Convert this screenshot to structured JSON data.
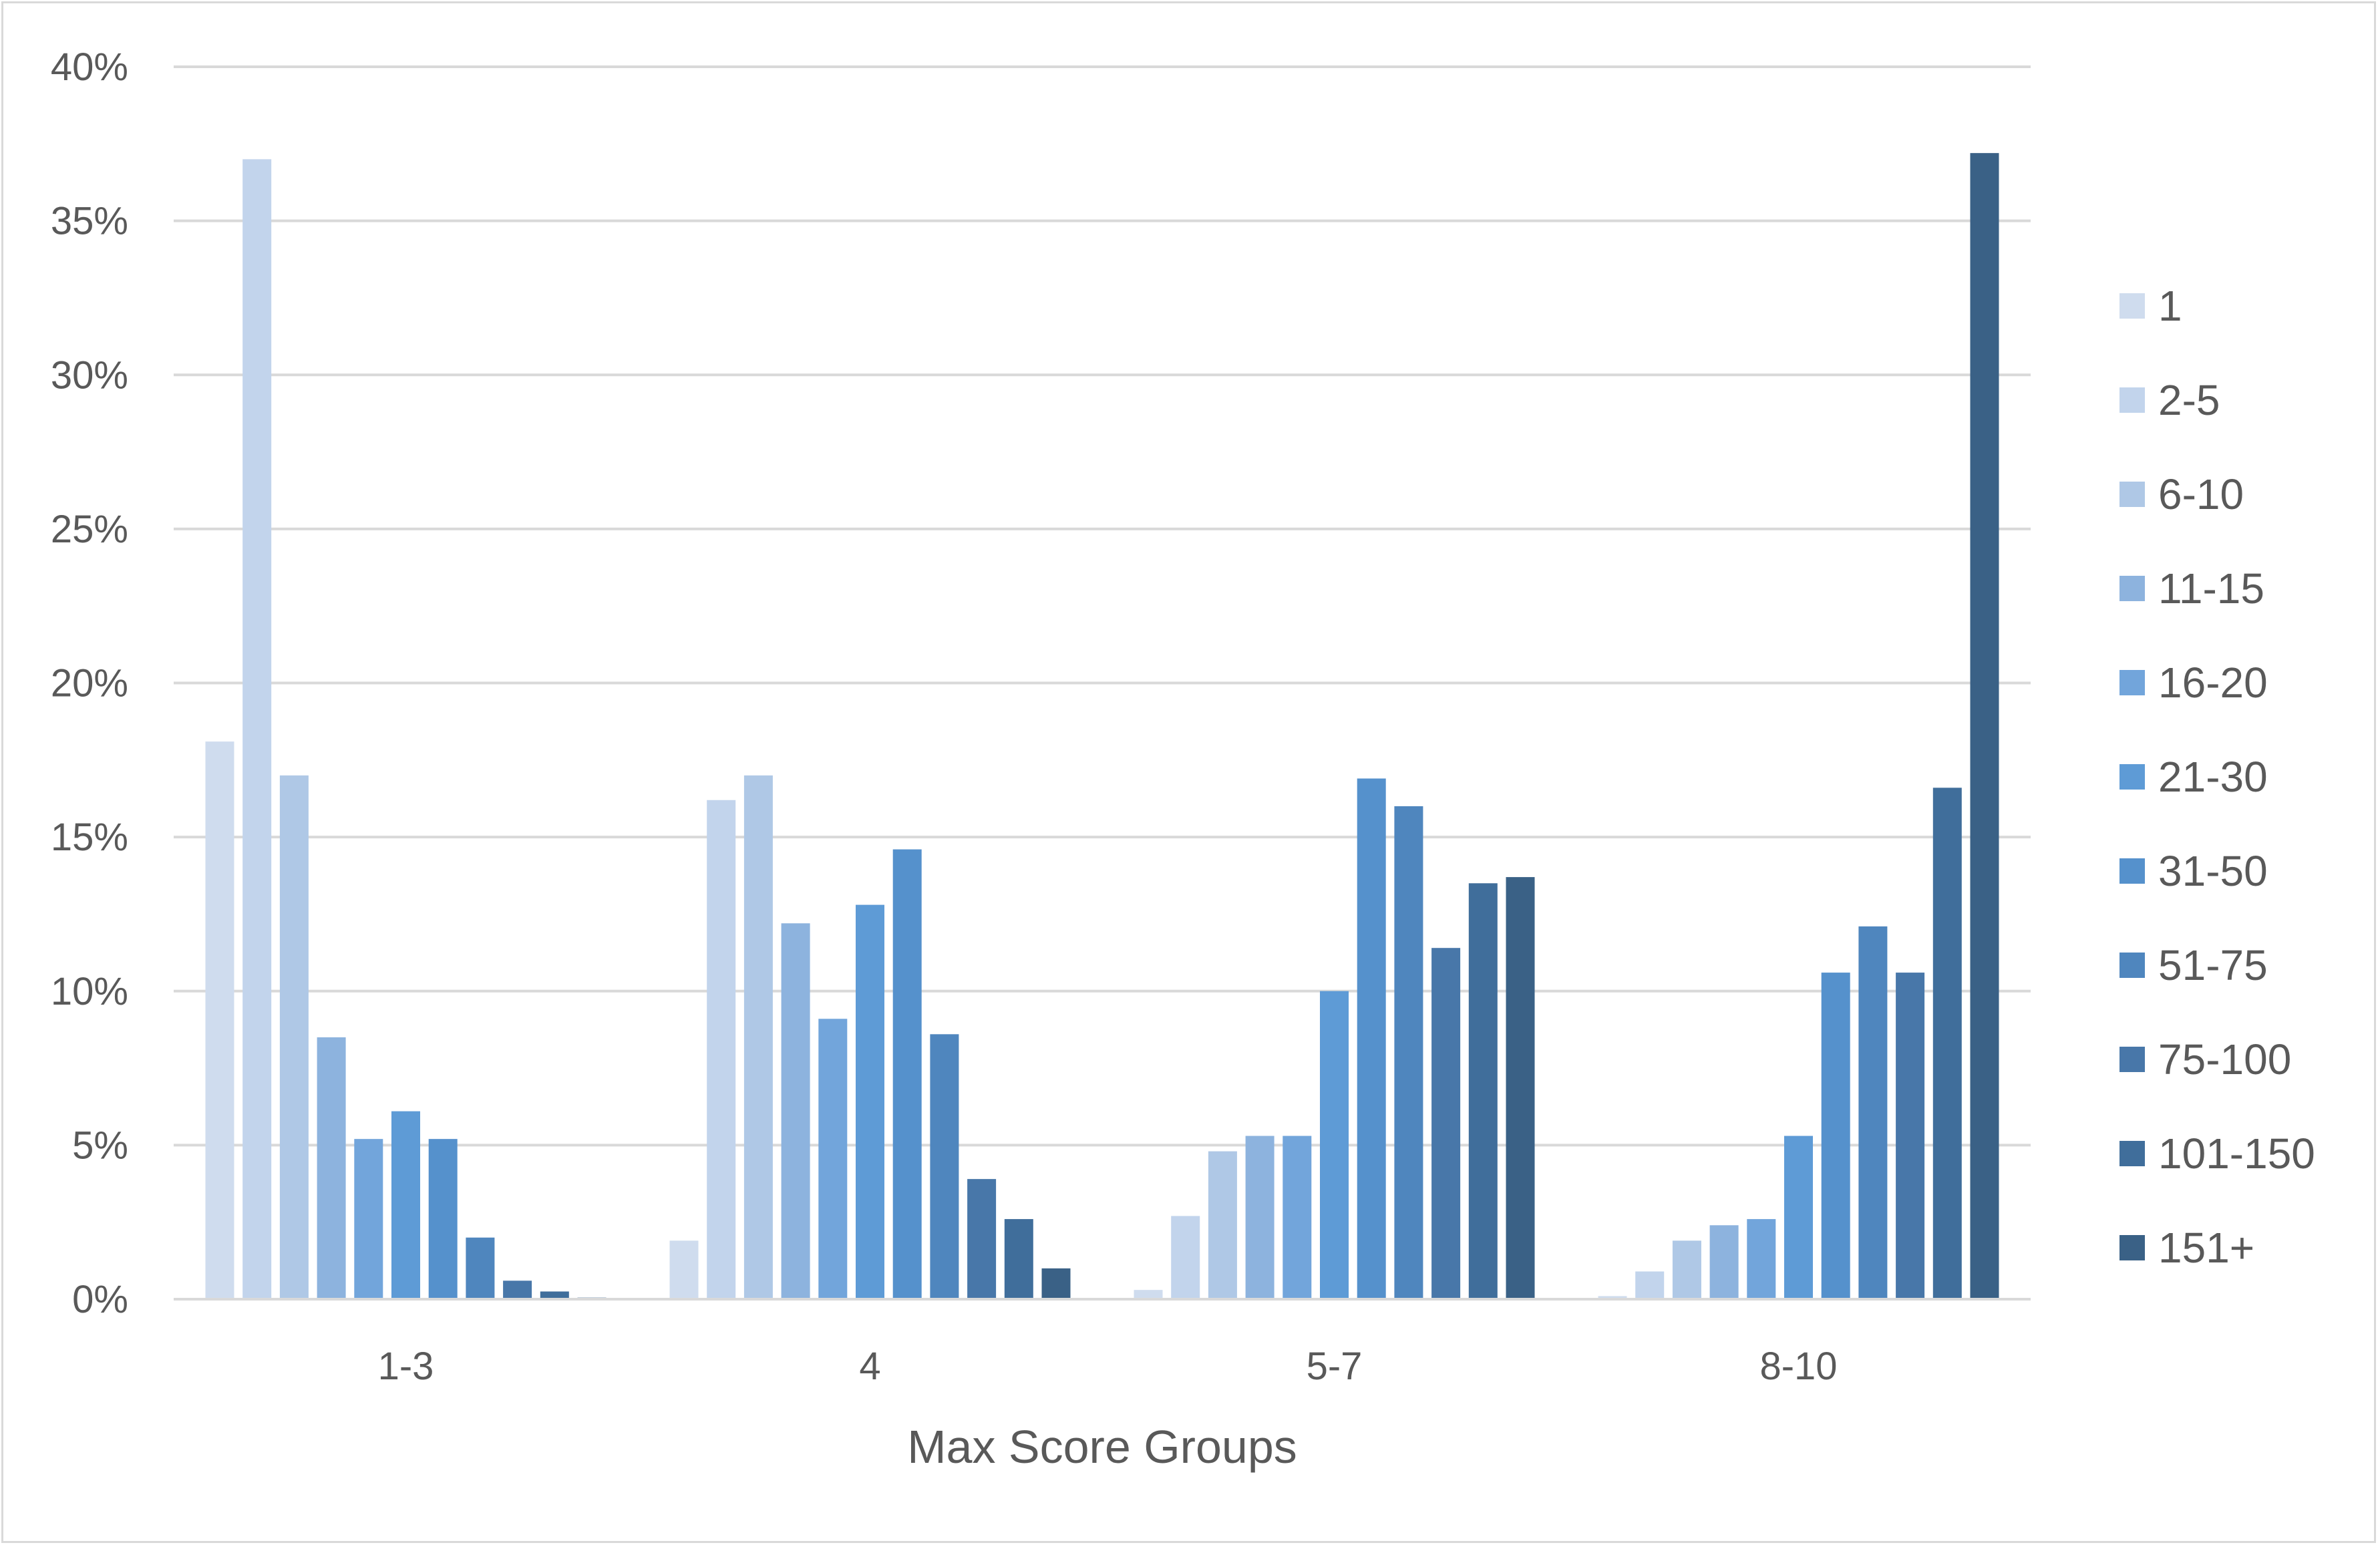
{
  "chart_data": {
    "type": "bar",
    "title": "",
    "xlabel": "Max Score Groups",
    "ylabel": "",
    "categories": [
      "1-3",
      "4",
      "5-7",
      "8-10"
    ],
    "ylim": [
      0,
      40
    ],
    "yticks": [
      0,
      5,
      10,
      15,
      20,
      25,
      30,
      35,
      40
    ],
    "ytick_labels": [
      "0%",
      "5%",
      "10%",
      "15%",
      "20%",
      "25%",
      "30%",
      "35%",
      "40%"
    ],
    "grid": true,
    "legend_position": "right",
    "series": [
      {
        "name": "1",
        "color": "#cfdcee",
        "values": [
          18.1,
          1.9,
          0.3,
          0.1
        ]
      },
      {
        "name": "2-5",
        "color": "#c2d4ec",
        "values": [
          37.0,
          16.2,
          2.7,
          0.9
        ]
      },
      {
        "name": "6-10",
        "color": "#afc8e6",
        "values": [
          17.0,
          17.0,
          4.8,
          1.9
        ]
      },
      {
        "name": "11-15",
        "color": "#8db3de",
        "values": [
          8.5,
          12.2,
          5.3,
          2.4
        ]
      },
      {
        "name": "16-20",
        "color": "#72a5db",
        "values": [
          5.2,
          9.1,
          5.3,
          2.6
        ]
      },
      {
        "name": "21-30",
        "color": "#5e9bd6",
        "values": [
          6.1,
          12.8,
          10.0,
          5.3
        ]
      },
      {
        "name": "31-50",
        "color": "#5591cc",
        "values": [
          5.2,
          14.6,
          16.9,
          10.6
        ]
      },
      {
        "name": "51-75",
        "color": "#4f86be",
        "values": [
          2.0,
          8.6,
          16.0,
          12.1
        ]
      },
      {
        "name": "75-100",
        "color": "#4877a9",
        "values": [
          0.6,
          3.9,
          11.4,
          10.6
        ]
      },
      {
        "name": "101-150",
        "color": "#406e9b",
        "values": [
          0.25,
          2.6,
          13.5,
          16.6
        ]
      },
      {
        "name": "151+",
        "color": "#3a6186",
        "values": [
          0.05,
          1.0,
          13.7,
          37.2
        ]
      }
    ]
  }
}
